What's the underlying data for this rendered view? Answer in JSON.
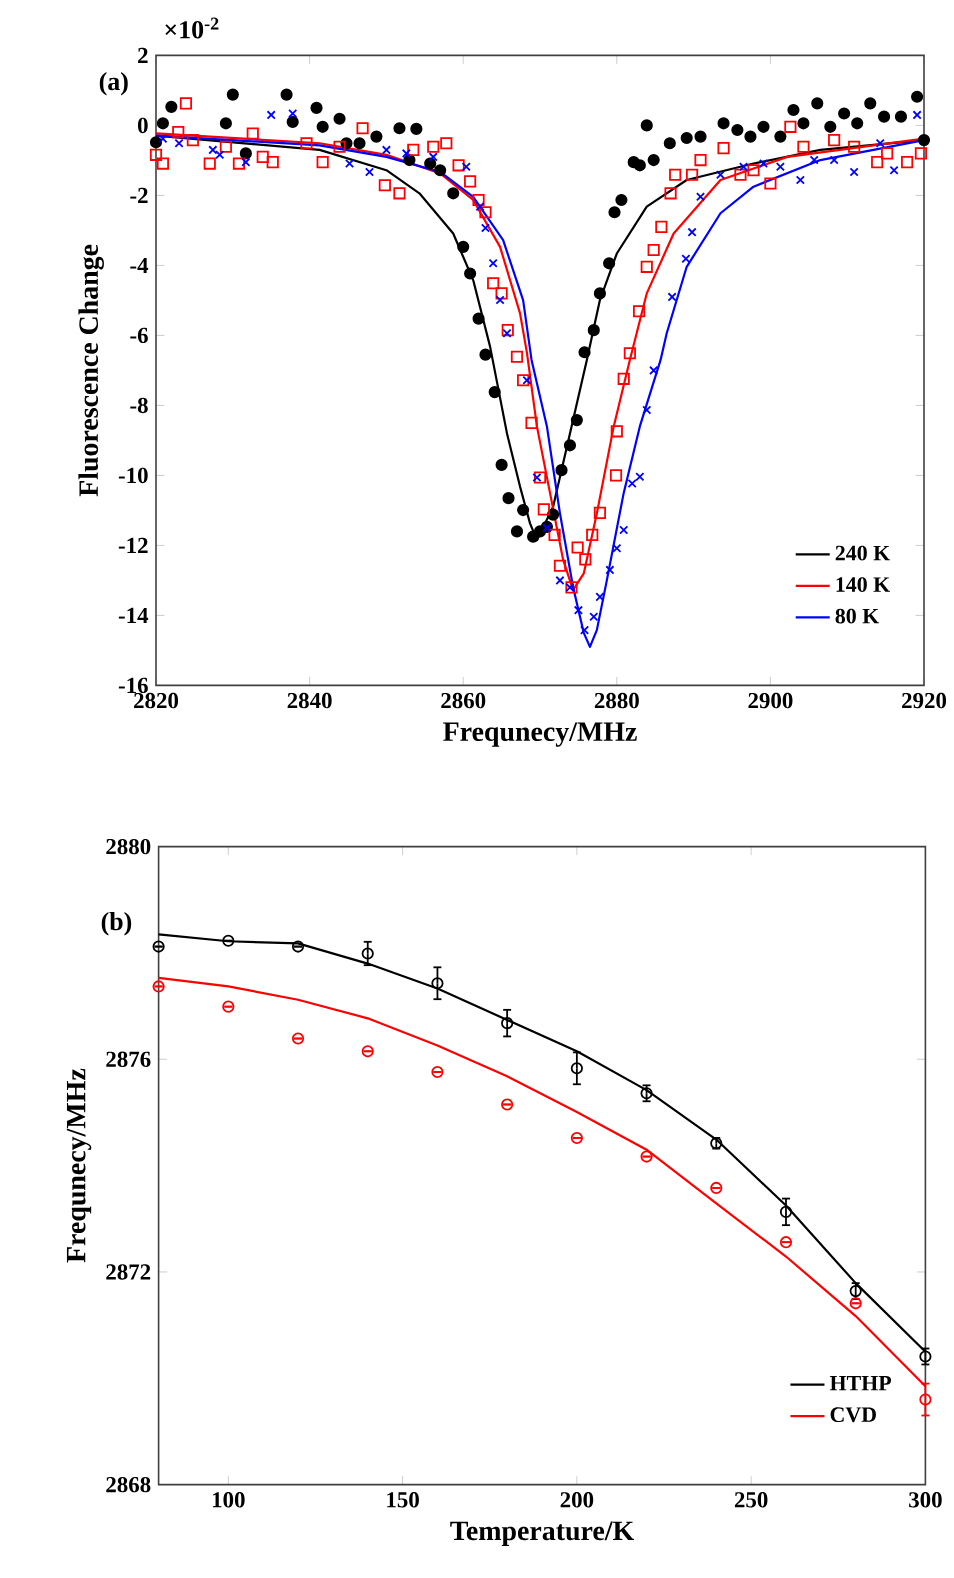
{
  "chart_data": [
    {
      "type": "line",
      "xlabel": "Frequnecy/MHz",
      "ylabel": "Fluorescence Change",
      "annotations": [
        "(a)",
        "×10$^{-2}$"
      ],
      "xlim": [
        2820,
        2920
      ],
      "xticks": [
        2820,
        2840,
        2860,
        2880,
        2900,
        2920
      ],
      "ylim": [
        -16,
        2
      ],
      "yticks": [
        -16,
        -14,
        -12,
        -10,
        -8,
        -6,
        -4,
        -2,
        0,
        2
      ],
      "legend": "bottom right",
      "grid": false,
      "series": [
        {
          "type": "scatter",
          "marker": "circle",
          "color": "#000000",
          "x": [
            2820.0,
            2820.9,
            2822.0,
            2829.1,
            2830.0,
            2831.7,
            2837.0,
            2837.8,
            2840.9,
            2841.7,
            2843.9,
            2844.8,
            2846.5,
            2848.7,
            2851.7,
            2853.0,
            2853.9,
            2855.7,
            2857.0,
            2858.7,
            2860.0,
            2860.9,
            2862.0,
            2862.9,
            2864.1,
            2865.0,
            2865.9,
            2867.0,
            2867.8,
            2869.1,
            2870.0,
            2870.9,
            2871.7,
            2872.8,
            2873.9,
            2874.8,
            2875.8,
            2877.0,
            2877.8,
            2879.0,
            2879.7,
            2880.6,
            2882.2,
            2883.0,
            2883.9,
            2884.8,
            2886.9,
            2889.1,
            2890.9,
            2893.9,
            2895.7,
            2897.4,
            2899.1,
            2901.3,
            2903.0,
            2904.3,
            2906.1,
            2907.8,
            2909.6,
            2911.3,
            2913.0,
            2914.8,
            2917.0,
            2919.1,
            2920.0
          ],
          "values": [
            -0.48,
            0.06,
            0.53,
            0.06,
            0.88,
            -0.8,
            0.88,
            0.1,
            0.5,
            -0.04,
            0.19,
            -0.51,
            -0.51,
            -0.32,
            -0.08,
            -0.99,
            -0.1,
            -1.09,
            -1.28,
            -1.94,
            -3.47,
            -4.23,
            -5.52,
            -6.55,
            -7.62,
            -9.7,
            -10.65,
            -11.6,
            -10.99,
            -11.75,
            -11.6,
            -11.47,
            -11.12,
            -9.85,
            -9.14,
            -8.42,
            -6.48,
            -5.85,
            -4.8,
            -3.94,
            -2.48,
            -2.13,
            -1.05,
            -1.14,
            0.0,
            -0.99,
            -0.51,
            -0.36,
            -0.32,
            0.06,
            -0.13,
            -0.32,
            -0.04,
            -0.32,
            0.44,
            0.06,
            0.63,
            -0.04,
            0.34,
            0.06,
            0.63,
            0.25,
            0.25,
            0.82,
            -0.42
          ]
        },
        {
          "type": "scatter",
          "marker": "square",
          "color": "#ff0000",
          "x": [
            2820.0,
            2820.9,
            2822.9,
            2823.9,
            2824.8,
            2827.0,
            2829.1,
            2830.8,
            2832.6,
            2833.9,
            2835.2,
            2839.6,
            2841.7,
            2843.9,
            2846.9,
            2849.8,
            2851.7,
            2853.5,
            2856.1,
            2857.8,
            2859.4,
            2860.9,
            2862.0,
            2862.9,
            2863.9,
            2865.0,
            2865.8,
            2867.0,
            2867.8,
            2868.9,
            2870.0,
            2870.5,
            2871.9,
            2872.6,
            2874.1,
            2874.9,
            2875.9,
            2876.8,
            2877.8,
            2879.9,
            2880.0,
            2880.9,
            2881.7,
            2882.9,
            2883.9,
            2884.8,
            2885.8,
            2887.0,
            2887.6,
            2889.8,
            2890.9,
            2893.9,
            2896.1,
            2897.8,
            2900.0,
            2902.6,
            2904.3,
            2908.3,
            2910.9,
            2913.9,
            2915.2,
            2917.8,
            2919.6
          ],
          "values": [
            -0.84,
            -1.09,
            -0.19,
            0.63,
            -0.42,
            -1.09,
            -0.61,
            -1.09,
            -0.23,
            -0.9,
            -1.05,
            -0.51,
            -1.05,
            -0.61,
            -0.08,
            -1.71,
            -1.94,
            -0.7,
            -0.61,
            -0.51,
            -1.14,
            -1.6,
            -2.13,
            -2.48,
            -4.51,
            -4.8,
            -5.85,
            -6.61,
            -7.28,
            -8.5,
            -10.06,
            -10.97,
            -11.7,
            -12.58,
            -13.2,
            -12.06,
            -12.4,
            -11.7,
            -11.07,
            -10.0,
            -8.74,
            -7.24,
            -6.51,
            -5.31,
            -4.04,
            -3.56,
            -2.9,
            -1.94,
            -1.41,
            -1.41,
            -0.99,
            -0.65,
            -1.41,
            -1.28,
            -1.66,
            -0.04,
            -0.61,
            -0.42,
            -0.61,
            -1.05,
            -0.8,
            -1.05,
            -0.8
          ]
        },
        {
          "type": "scatter",
          "marker": "cross",
          "color": "#0000ff",
          "x": [
            2820.9,
            2823.0,
            2827.4,
            2828.3,
            2831.7,
            2835.0,
            2837.8,
            2845.2,
            2847.8,
            2850.0,
            2852.6,
            2856.1,
            2860.4,
            2862.2,
            2862.9,
            2863.9,
            2864.8,
            2865.7,
            2868.3,
            2869.6,
            2870.9,
            2872.6,
            2873.9,
            2875.0,
            2875.8,
            2877.0,
            2877.8,
            2879.1,
            2880.0,
            2880.9,
            2882.0,
            2883.0,
            2883.9,
            2884.8,
            2887.2,
            2889.0,
            2889.8,
            2890.9,
            2893.5,
            2896.5,
            2899.1,
            2901.3,
            2903.9,
            2905.7,
            2908.3,
            2910.9,
            2914.3,
            2916.1,
            2919.1
          ],
          "values": [
            -0.38,
            -0.51,
            -0.7,
            -0.84,
            -1.05,
            0.3,
            0.34,
            -1.09,
            -1.33,
            -0.7,
            -0.8,
            -0.9,
            -1.18,
            -2.32,
            -2.93,
            -3.94,
            -4.99,
            -5.94,
            -7.28,
            -10.06,
            -11.5,
            -13.0,
            -13.2,
            -13.85,
            -14.42,
            -14.04,
            -13.47,
            -12.7,
            -12.08,
            -11.56,
            -10.23,
            -10.04,
            -8.13,
            -7.0,
            -4.9,
            -3.81,
            -3.05,
            -2.04,
            -1.41,
            -1.18,
            -1.09,
            -1.18,
            -1.56,
            -0.99,
            -0.99,
            -1.33,
            -0.51,
            -1.28,
            0.3
          ]
        },
        {
          "name": "240 K",
          "color": "#000000",
          "x": [
            2820.0,
            2841.3,
            2850.0,
            2854.3,
            2858.7,
            2861.3,
            2863.5,
            2865.7,
            2867.4,
            2868.7,
            2869.6,
            2871.7,
            2873.9,
            2876.1,
            2877.8,
            2880.0,
            2883.9,
            2889.1,
            2897.8,
            2906.5,
            2920.0
          ],
          "values": [
            -0.29,
            -0.7,
            -1.28,
            -1.94,
            -3.09,
            -4.42,
            -6.32,
            -8.8,
            -10.32,
            -11.37,
            -11.85,
            -10.9,
            -8.8,
            -6.7,
            -4.99,
            -3.66,
            -2.32,
            -1.56,
            -1.09,
            -0.7,
            -0.42
          ]
        },
        {
          "name": "140 K",
          "color": "#ff0000",
          "x": [
            2820.0,
            2841.3,
            2850.0,
            2857.0,
            2861.3,
            2864.8,
            2867.4,
            2868.3,
            2869.6,
            2871.3,
            2873.0,
            2874.3,
            2875.7,
            2877.4,
            2879.6,
            2881.7,
            2883.9,
            2887.4,
            2893.5,
            2902.2,
            2920.0
          ],
          "values": [
            -0.23,
            -0.51,
            -0.84,
            -1.37,
            -2.13,
            -3.47,
            -5.37,
            -6.5,
            -8.6,
            -10.5,
            -12.4,
            -13.28,
            -12.8,
            -11.09,
            -8.6,
            -6.7,
            -4.8,
            -3.09,
            -1.56,
            -0.9,
            -0.38
          ]
        },
        {
          "name": "80 K",
          "color": "#0000ff",
          "x": [
            2820.0,
            2841.3,
            2850.0,
            2857.0,
            2861.3,
            2865.2,
            2867.8,
            2868.9,
            2870.9,
            2872.6,
            2874.3,
            2875.7,
            2876.5,
            2877.4,
            2878.7,
            2880.9,
            2883.0,
            2885.7,
            2886.5,
            2889.1,
            2893.5,
            2897.8,
            2906.5,
            2920.0
          ],
          "values": [
            -0.29,
            -0.57,
            -0.9,
            -1.33,
            -2.04,
            -3.28,
            -4.99,
            -6.7,
            -8.6,
            -11.09,
            -13.18,
            -14.5,
            -14.9,
            -14.42,
            -13.0,
            -10.5,
            -8.6,
            -6.7,
            -5.94,
            -4.04,
            -2.51,
            -1.75,
            -0.99,
            -0.42
          ]
        }
      ]
    },
    {
      "type": "line",
      "xlabel": "Temperature/K",
      "ylabel": "Frequnecy/MHz",
      "annotations": [
        "(b)"
      ],
      "xlim": [
        80,
        300
      ],
      "xticks": [
        100,
        150,
        200,
        250,
        300
      ],
      "ylim": [
        2868,
        2880
      ],
      "yticks": [
        2868,
        2872,
        2876,
        2880
      ],
      "legend": "bottom right",
      "grid": false,
      "series": [
        {
          "type": "scatter",
          "marker": "circle",
          "color": "#000000",
          "x": [
            80,
            100,
            120,
            140,
            160,
            180,
            200,
            220,
            240,
            260,
            280,
            300
          ],
          "values": [
            2878.12,
            2878.23,
            2878.12,
            2877.99,
            2877.43,
            2876.68,
            2875.83,
            2875.36,
            2874.42,
            2873.13,
            2871.64,
            2870.41
          ],
          "errors": [
            null,
            null,
            null,
            0.22,
            0.3,
            0.25,
            0.3,
            0.15,
            0.1,
            0.25,
            0.15,
            0.15
          ]
        },
        {
          "type": "scatter",
          "marker": "circle",
          "color": "#ff0000",
          "x": [
            80,
            100,
            120,
            140,
            160,
            180,
            200,
            220,
            240,
            260,
            280,
            300
          ],
          "values": [
            2877.37,
            2876.99,
            2876.39,
            2876.15,
            2875.76,
            2875.15,
            2874.52,
            2874.17,
            2873.58,
            2872.56,
            2871.41,
            2869.6
          ],
          "errors": [
            null,
            null,
            null,
            null,
            null,
            null,
            null,
            null,
            null,
            null,
            null,
            0.3
          ]
        },
        {
          "name": "HTHP",
          "color": "#000000",
          "x": [
            80,
            100,
            120,
            140,
            160,
            180,
            200,
            220,
            240,
            260,
            280,
            300
          ],
          "values": [
            2878.35,
            2878.22,
            2878.18,
            2877.8,
            2877.33,
            2876.74,
            2876.15,
            2875.42,
            2874.49,
            2873.25,
            2871.79,
            2870.5
          ]
        },
        {
          "name": "CVD",
          "color": "#ff0000",
          "x": [
            80,
            100,
            120,
            140,
            160,
            180,
            200,
            220,
            240,
            260,
            280,
            300
          ],
          "values": [
            2877.53,
            2877.37,
            2877.12,
            2876.77,
            2876.26,
            2875.68,
            2875.01,
            2874.3,
            2873.29,
            2872.29,
            2871.17,
            2869.85
          ]
        }
      ]
    }
  ]
}
